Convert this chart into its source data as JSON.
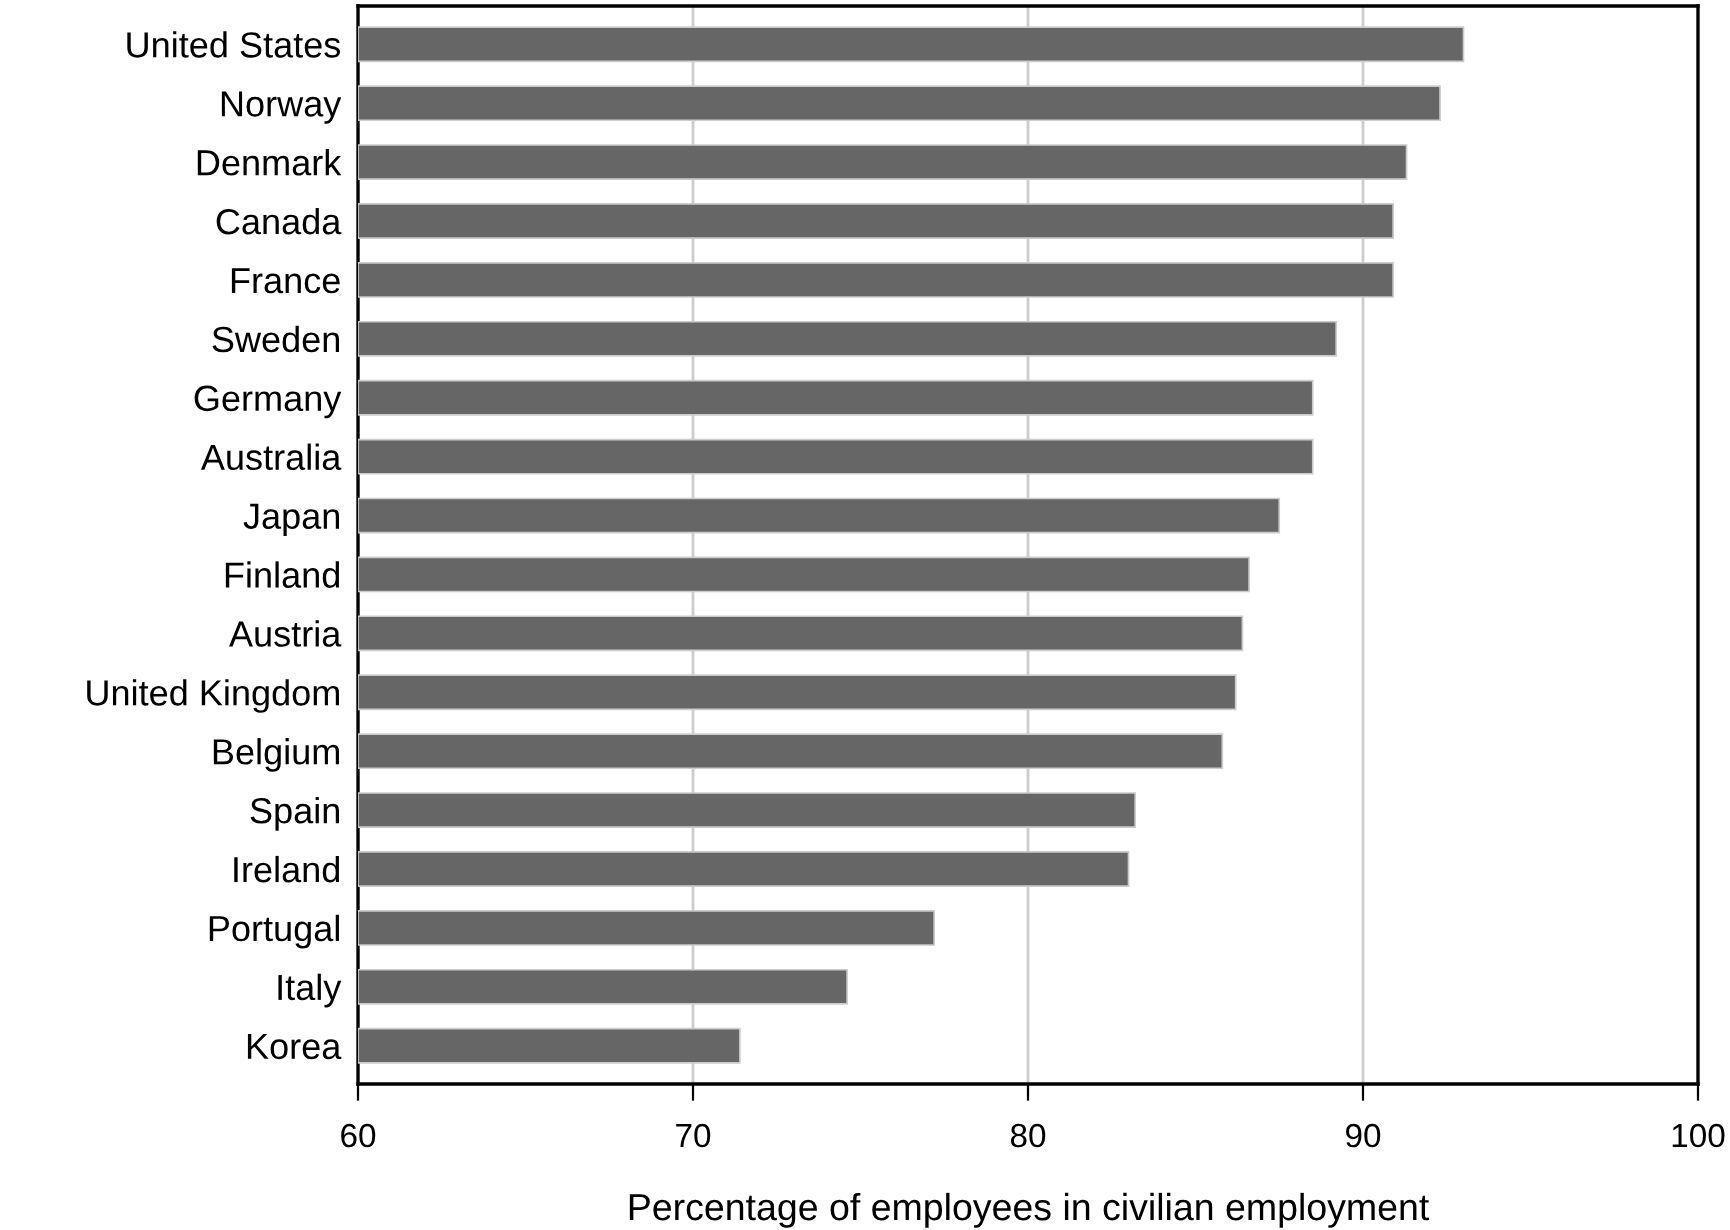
{
  "chart_data": {
    "type": "bar",
    "orientation": "horizontal",
    "xlabel": "Percentage of employees in civilian employment",
    "categories": [
      "United States",
      "Norway",
      "Denmark",
      "Canada",
      "France",
      "Sweden",
      "Germany",
      "Australia",
      "Japan",
      "Finland",
      "Austria",
      "United Kingdom",
      "Belgium",
      "Spain",
      "Ireland",
      "Portugal",
      "Italy",
      "Korea"
    ],
    "values": [
      93.0,
      92.3,
      91.3,
      90.9,
      90.9,
      89.2,
      88.5,
      88.5,
      87.5,
      86.6,
      86.4,
      86.2,
      85.8,
      83.2,
      83.0,
      77.2,
      74.6,
      71.4
    ],
    "color": "#666666",
    "xlim": [
      60,
      100
    ],
    "xticks": [
      60,
      70,
      80,
      90,
      100
    ],
    "grid": "x"
  }
}
